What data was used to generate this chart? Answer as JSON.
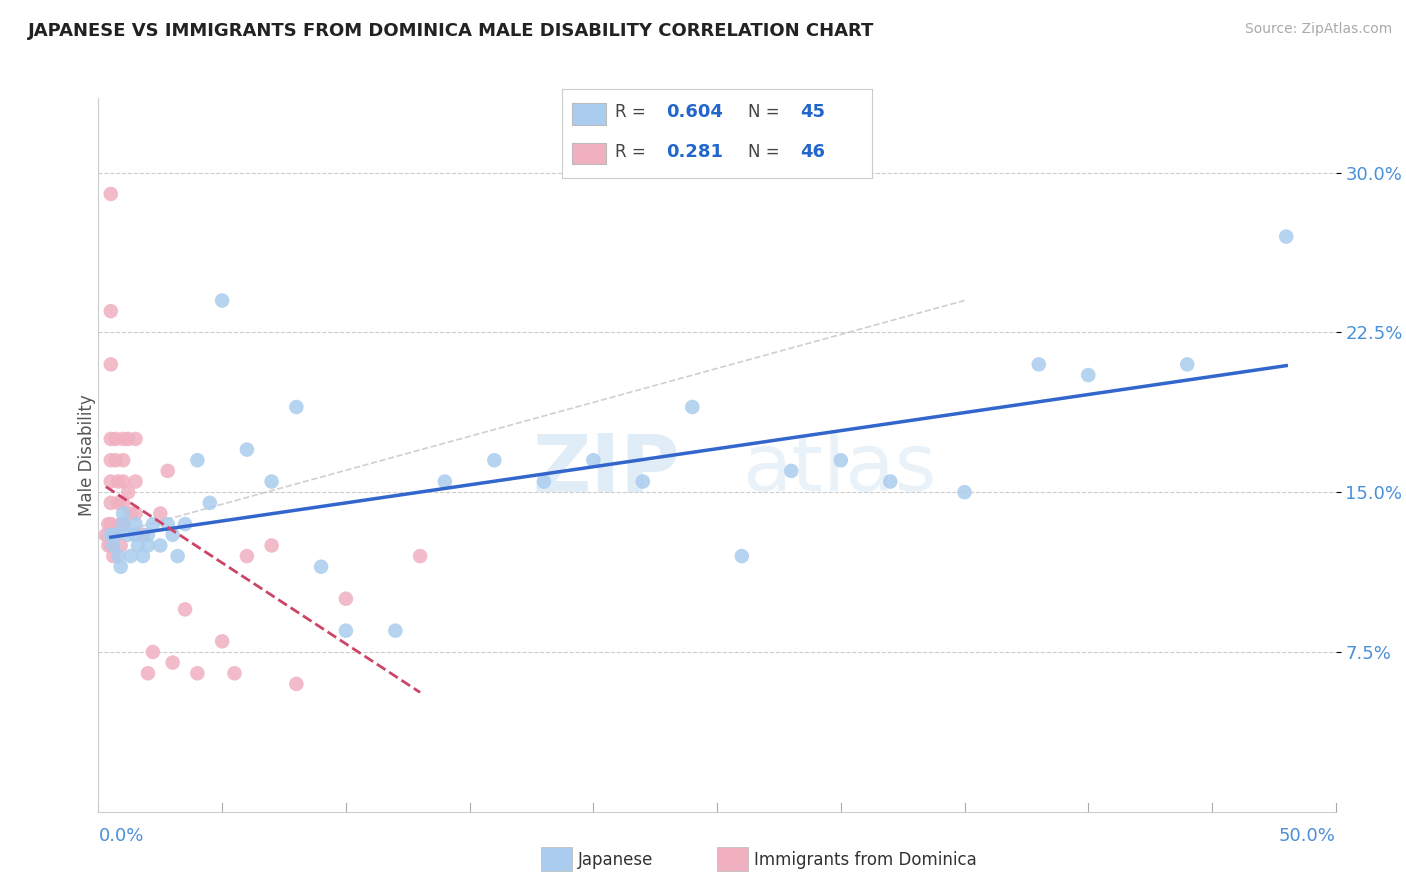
{
  "title": "JAPANESE VS IMMIGRANTS FROM DOMINICA MALE DISABILITY CORRELATION CHART",
  "source_text": "Source: ZipAtlas.com",
  "ylabel": "Male Disability",
  "xmin": 0.0,
  "xmax": 0.5,
  "ymin": 0.0,
  "ymax": 0.335,
  "yticks": [
    0.075,
    0.15,
    0.225,
    0.3
  ],
  "ytick_labels": [
    "7.5%",
    "15.0%",
    "22.5%",
    "30.0%"
  ],
  "japanese_color": "#aaccee",
  "dominica_color": "#f0b0c0",
  "japanese_line_color": "#3366cc",
  "dominica_line_color": "#cc4466",
  "watermark": "ZIPatlas",
  "background_color": "#ffffff",
  "japanese_x": [
    0.005,
    0.006,
    0.007,
    0.008,
    0.009,
    0.01,
    0.01,
    0.012,
    0.013,
    0.015,
    0.015,
    0.016,
    0.018,
    0.02,
    0.02,
    0.022,
    0.025,
    0.028,
    0.03,
    0.032,
    0.035,
    0.04,
    0.045,
    0.05,
    0.06,
    0.07,
    0.08,
    0.09,
    0.1,
    0.12,
    0.14,
    0.16,
    0.18,
    0.2,
    0.22,
    0.24,
    0.26,
    0.28,
    0.3,
    0.32,
    0.35,
    0.38,
    0.4,
    0.44,
    0.48
  ],
  "japanese_y": [
    0.13,
    0.125,
    0.13,
    0.12,
    0.115,
    0.135,
    0.14,
    0.13,
    0.12,
    0.135,
    0.13,
    0.125,
    0.12,
    0.13,
    0.125,
    0.135,
    0.125,
    0.135,
    0.13,
    0.12,
    0.135,
    0.165,
    0.145,
    0.24,
    0.17,
    0.155,
    0.19,
    0.115,
    0.085,
    0.085,
    0.155,
    0.165,
    0.155,
    0.165,
    0.155,
    0.19,
    0.12,
    0.16,
    0.165,
    0.155,
    0.15,
    0.21,
    0.205,
    0.21,
    0.27
  ],
  "dominica_x": [
    0.003,
    0.004,
    0.004,
    0.005,
    0.005,
    0.005,
    0.005,
    0.005,
    0.005,
    0.005,
    0.005,
    0.005,
    0.006,
    0.006,
    0.007,
    0.007,
    0.008,
    0.008,
    0.009,
    0.009,
    0.01,
    0.01,
    0.01,
    0.01,
    0.01,
    0.012,
    0.012,
    0.013,
    0.015,
    0.015,
    0.015,
    0.018,
    0.02,
    0.022,
    0.025,
    0.028,
    0.03,
    0.035,
    0.04,
    0.05,
    0.055,
    0.06,
    0.07,
    0.08,
    0.1,
    0.13
  ],
  "dominica_y": [
    0.13,
    0.125,
    0.135,
    0.29,
    0.235,
    0.21,
    0.175,
    0.165,
    0.155,
    0.145,
    0.135,
    0.125,
    0.13,
    0.12,
    0.175,
    0.165,
    0.155,
    0.145,
    0.135,
    0.125,
    0.175,
    0.165,
    0.155,
    0.145,
    0.135,
    0.175,
    0.15,
    0.14,
    0.175,
    0.155,
    0.14,
    0.13,
    0.065,
    0.075,
    0.14,
    0.16,
    0.07,
    0.095,
    0.065,
    0.08,
    0.065,
    0.12,
    0.125,
    0.06,
    0.1,
    0.12
  ]
}
